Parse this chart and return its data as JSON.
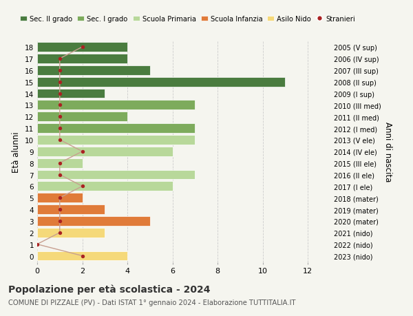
{
  "ages": [
    18,
    17,
    16,
    15,
    14,
    13,
    12,
    11,
    10,
    9,
    8,
    7,
    6,
    5,
    4,
    3,
    2,
    1,
    0
  ],
  "right_labels": [
    "2005 (V sup)",
    "2006 (IV sup)",
    "2007 (III sup)",
    "2008 (II sup)",
    "2009 (I sup)",
    "2010 (III med)",
    "2011 (II med)",
    "2012 (I med)",
    "2013 (V ele)",
    "2014 (IV ele)",
    "2015 (III ele)",
    "2016 (II ele)",
    "2017 (I ele)",
    "2018 (mater)",
    "2019 (mater)",
    "2020 (mater)",
    "2021 (nido)",
    "2022 (nido)",
    "2023 (nido)"
  ],
  "bar_values": [
    4,
    4,
    5,
    11,
    3,
    7,
    4,
    7,
    7,
    6,
    2,
    7,
    6,
    2,
    3,
    5,
    3,
    0,
    4
  ],
  "bar_colors": [
    "#4a7c3f",
    "#4a7c3f",
    "#4a7c3f",
    "#4a7c3f",
    "#4a7c3f",
    "#7dab5c",
    "#7dab5c",
    "#7dab5c",
    "#b8d89a",
    "#b8d89a",
    "#b8d89a",
    "#b8d89a",
    "#b8d89a",
    "#e07b39",
    "#e07b39",
    "#e07b39",
    "#f5d97a",
    "#f5d97a",
    "#f5d97a"
  ],
  "stranieri_values": [
    2,
    1,
    1,
    1,
    1,
    1,
    1,
    1,
    1,
    2,
    1,
    1,
    2,
    1,
    1,
    1,
    1,
    0,
    2
  ],
  "legend_labels": [
    "Sec. II grado",
    "Sec. I grado",
    "Scuola Primaria",
    "Scuola Infanzia",
    "Asilo Nido",
    "Stranieri"
  ],
  "legend_colors": [
    "#4a7c3f",
    "#7dab5c",
    "#b8d89a",
    "#e07b39",
    "#f5d97a",
    "#c0392b"
  ],
  "ylabel": "Età alunni",
  "right_ylabel": "Anni di nascita",
  "title": "Popolazione per età scolastica - 2024",
  "subtitle": "COMUNE DI PIZZALE (PV) - Dati ISTAT 1° gennaio 2024 - Elaborazione TUTTITALIA.IT",
  "xlim": [
    0,
    13
  ],
  "background_color": "#f5f5ef",
  "grid_color": "#cccccc",
  "stranieri_color": "#aa2222",
  "stranieri_line_color": "#c8a090"
}
